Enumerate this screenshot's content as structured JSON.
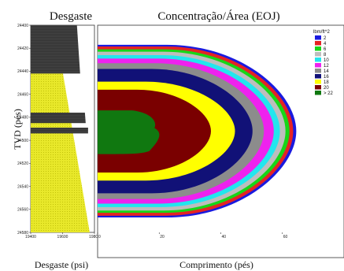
{
  "chart_data": [
    {
      "type": "area",
      "title": "Desgaste",
      "xlabel": "Desgaste (psi)",
      "ylabel": "TVD (pés)",
      "xlim": [
        19400,
        19800
      ],
      "ylim": [
        24580,
        24400
      ],
      "x_ticks": [
        "19400",
        "19600",
        "19800"
      ],
      "y_ticks": [
        "24400",
        "24420",
        "24440",
        "24460",
        "24480",
        "24500",
        "24520",
        "24540",
        "24560",
        "24580"
      ],
      "colors": {
        "wear_fill": "#e8e82a",
        "wear_dots": "#b7b700",
        "casing": "#333333"
      },
      "wear_profile": [
        {
          "tvd": 24440,
          "x_start": 19400,
          "x_end": 19600
        },
        {
          "tvd": 24580,
          "x_start": 19400,
          "x_end": 19770
        }
      ],
      "casing_blocks": [
        {
          "tvd_top": 24400,
          "tvd_bottom": 24442,
          "x_start": 19400,
          "x_end_top": 19690,
          "x_end_bottom": 19710
        },
        {
          "tvd_top": 24476,
          "tvd_bottom": 24485,
          "x_start": 19400,
          "x_end_top": 19740,
          "x_end_bottom": 19745
        },
        {
          "tvd_top": 24489,
          "tvd_bottom": 24494,
          "x_start": 19400,
          "x_end_top": 19760,
          "x_end_bottom": 19760
        }
      ]
    },
    {
      "type": "heatmap",
      "title": "Concentração/Área (EOJ)",
      "xlabel": "Comprimento (pés)",
      "ylabel": "",
      "xlim": [
        0,
        80
      ],
      "ylim": [
        24580,
        24400
      ],
      "x_ticks": [
        "0",
        "20",
        "40",
        "60"
      ],
      "legend_title": "lbm/ft^2",
      "legend_position": "top-right",
      "center_tvd": 24492,
      "contours": [
        {
          "label": "2",
          "color": "#1a1adf",
          "length": 64.5,
          "top_tvd": 24417,
          "bottom_tvd": 24567
        },
        {
          "label": "4",
          "color": "#e52323",
          "length": 63.5,
          "top_tvd": 24418.5,
          "bottom_tvd": 24565.5
        },
        {
          "label": "6",
          "color": "#17d617",
          "length": 62.3,
          "top_tvd": 24421,
          "bottom_tvd": 24563
        },
        {
          "label": "8",
          "color": "#bdbdbd",
          "length": 61.0,
          "top_tvd": 24423,
          "bottom_tvd": 24561
        },
        {
          "label": "10",
          "color": "#22e6ee",
          "length": 59.2,
          "top_tvd": 24426,
          "bottom_tvd": 24558
        },
        {
          "label": "12",
          "color": "#ee22ee",
          "length": 57.2,
          "top_tvd": 24429,
          "bottom_tvd": 24555
        },
        {
          "label": "14",
          "color": "#8c8c8c",
          "length": 54.0,
          "top_tvd": 24433,
          "bottom_tvd": 24551
        },
        {
          "label": "16",
          "color": "#111177",
          "length": 50.3,
          "top_tvd": 24438,
          "bottom_tvd": 24546
        },
        {
          "label": "18",
          "color": "#ffff00",
          "length": 44.6,
          "top_tvd": 24449,
          "bottom_tvd": 24535
        },
        {
          "label": "20",
          "color": "#7a0000",
          "length": 36.8,
          "top_tvd": 24456,
          "bottom_tvd": 24528
        },
        {
          "label": "> 22",
          "color": "#107810",
          "length": 20.5,
          "top_tvd": 24474,
          "bottom_tvd": 24512
        }
      ]
    }
  ]
}
